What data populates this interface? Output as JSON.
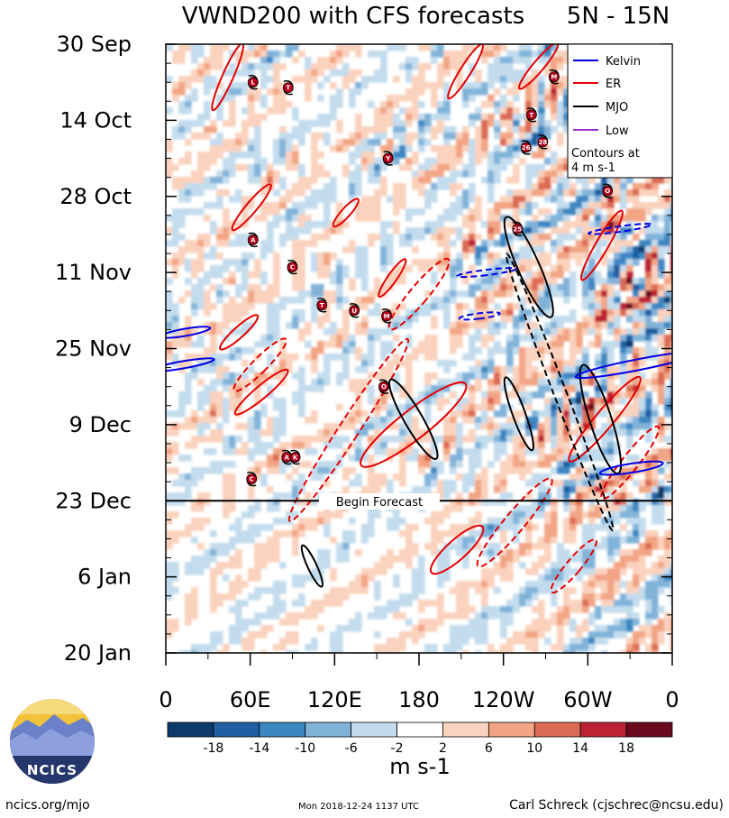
{
  "title": "VWND200 with CFS forecasts",
  "region": "5N - 15N",
  "chart_data": {
    "type": "heatmap",
    "variable": "200-hPa meridional wind anomaly, time-longitude (Hovmoller)",
    "y_axis": {
      "ticks": [
        "30 Sep",
        "14 Oct",
        "28 Oct",
        "11 Nov",
        "25 Nov",
        "9 Dec",
        "23 Dec",
        "6 Jan",
        "20 Jan"
      ],
      "range": [
        "30 Sep",
        "20 Jan"
      ],
      "day_range": [
        0,
        112
      ]
    },
    "x_axis": {
      "ticks": [
        "0",
        "60E",
        "120E",
        "180",
        "120W",
        "60W",
        "0"
      ],
      "range_deg": [
        0,
        360
      ]
    },
    "forecast_start": {
      "label": "Begin Forecast",
      "day": 84
    },
    "colorbar": {
      "ticks": [
        "-18",
        "-14",
        "-10",
        "-6",
        "-2",
        "2",
        "6",
        "10",
        "14",
        "18"
      ],
      "bins": [
        -22,
        -18,
        -14,
        -10,
        -6,
        -2,
        2,
        6,
        10,
        14,
        18,
        22
      ],
      "colors": [
        "#0c3a6b",
        "#1f5fa3",
        "#3c87c2",
        "#81b3d9",
        "#c3dced",
        "#ffffff",
        "#fad2bd",
        "#f2a584",
        "#dc6a55",
        "#bb2333",
        "#6b0a1e"
      ],
      "units": "m s-1"
    },
    "legend": {
      "items": [
        {
          "label": "Kelvin",
          "color": "#0000e6"
        },
        {
          "label": "ER",
          "color": "#e60000"
        },
        {
          "label": "MJO",
          "color": "#000000"
        },
        {
          "label": "Low",
          "color": "#9b30c8"
        }
      ],
      "note_line1": "Contours at",
      "note_line2": "4 m s-1",
      "placement": "top-right"
    },
    "storms": [
      {
        "symbol": "L",
        "lon": 62,
        "day": 7
      },
      {
        "symbol": "T",
        "lon": 87,
        "day": 8
      },
      {
        "symbol": "M",
        "lon": 276,
        "day": 6
      },
      {
        "symbol": "T",
        "lon": 260,
        "day": 13
      },
      {
        "symbol": "26",
        "lon": 256,
        "day": 19
      },
      {
        "symbol": "28",
        "lon": 268,
        "day": 18
      },
      {
        "symbol": "Y",
        "lon": 158,
        "day": 21
      },
      {
        "symbol": "O",
        "lon": 314,
        "day": 27
      },
      {
        "symbol": "25",
        "lon": 250,
        "day": 34
      },
      {
        "symbol": "A",
        "lon": 62,
        "day": 36
      },
      {
        "symbol": "C",
        "lon": 90,
        "day": 41
      },
      {
        "symbol": "T",
        "lon": 111,
        "day": 48
      },
      {
        "symbol": "U",
        "lon": 134,
        "day": 49
      },
      {
        "symbol": "M",
        "lon": 157,
        "day": 50
      },
      {
        "symbol": "O",
        "lon": 155,
        "day": 63
      },
      {
        "symbol": "A",
        "lon": 86,
        "day": 76
      },
      {
        "symbol": "K",
        "lon": 92,
        "day": 76
      },
      {
        "symbol": "C",
        "lon": 61,
        "day": 80
      }
    ],
    "contours": [
      {
        "wave": "ER",
        "style": "solid",
        "lon": 44,
        "day": 6,
        "rx": 6,
        "ry": 32,
        "rot": 24
      },
      {
        "wave": "ER",
        "style": "solid",
        "lon": 213,
        "day": 5,
        "rx": 6,
        "ry": 28,
        "rot": 32
      },
      {
        "wave": "ER",
        "style": "solid",
        "lon": 265,
        "day": 4,
        "rx": 6,
        "ry": 26,
        "rot": 40
      },
      {
        "wave": "ER",
        "style": "solid",
        "lon": 310,
        "day": 37,
        "rx": 7,
        "ry": 35,
        "rot": 30
      },
      {
        "wave": "ER",
        "style": "solid",
        "lon": 61,
        "day": 30,
        "rx": 6,
        "ry": 26,
        "rot": 40
      },
      {
        "wave": "ER",
        "style": "solid",
        "lon": 128,
        "day": 31,
        "rx": 5,
        "ry": 16,
        "rot": 42
      },
      {
        "wave": "ER",
        "style": "solid",
        "lon": 161,
        "day": 43,
        "rx": 5,
        "ry": 20,
        "rot": 35
      },
      {
        "wave": "ER",
        "style": "solid",
        "lon": 52,
        "day": 53,
        "rx": 6,
        "ry": 22,
        "rot": 48
      },
      {
        "wave": "ER",
        "style": "solid",
        "lon": 68,
        "day": 64,
        "rx": 7,
        "ry": 30,
        "rot": 50
      },
      {
        "wave": "ER",
        "style": "solid",
        "lon": 176,
        "day": 70,
        "rx": 16,
        "ry": 58,
        "rot": 52
      },
      {
        "wave": "ER",
        "style": "solid",
        "lon": 207,
        "day": 93,
        "rx": 11,
        "ry": 30,
        "rot": 48
      },
      {
        "wave": "ER",
        "style": "solid",
        "lon": 312,
        "day": 69,
        "rx": 10,
        "ry": 48,
        "rot": 40
      },
      {
        "wave": "ER",
        "style": "dashed",
        "lon": 130,
        "day": 71,
        "rx": 11,
        "ry": 95,
        "rot": 33
      },
      {
        "wave": "ER",
        "style": "dashed",
        "lon": 180,
        "day": 46,
        "rx": 10,
        "ry": 40,
        "rot": 40
      },
      {
        "wave": "ER",
        "style": "dashed",
        "lon": 67,
        "day": 59,
        "rx": 8,
        "ry": 32,
        "rot": 45
      },
      {
        "wave": "ER",
        "style": "dashed",
        "lon": 248,
        "day": 88,
        "rx": 11,
        "ry": 50,
        "rot": 40
      },
      {
        "wave": "ER",
        "style": "dashed",
        "lon": 330,
        "day": 77,
        "rx": 9,
        "ry": 40,
        "rot": 38
      },
      {
        "wave": "ER",
        "style": "dashed",
        "lon": 290,
        "day": 96,
        "rx": 8,
        "ry": 30,
        "rot": 40
      },
      {
        "wave": "MJO",
        "style": "solid",
        "lon": 176,
        "day": 69,
        "rx": 10,
        "ry": 40,
        "rot": -30
      },
      {
        "wave": "MJO",
        "style": "solid",
        "lon": 258,
        "day": 41,
        "rx": 12,
        "ry": 48,
        "rot": -24
      },
      {
        "wave": "MJO",
        "style": "solid",
        "lon": 251,
        "day": 68,
        "rx": 7,
        "ry": 34,
        "rot": -20
      },
      {
        "wave": "MJO",
        "style": "solid",
        "lon": 309,
        "day": 69,
        "rx": 12,
        "ry": 50,
        "rot": -18
      },
      {
        "wave": "MJO",
        "style": "solid",
        "lon": 104,
        "day": 96,
        "rx": 5,
        "ry": 20,
        "rot": -25
      },
      {
        "wave": "MJO",
        "style": "dashed",
        "lon": 280,
        "day": 64,
        "rx": 7,
        "ry": 130,
        "rot": -21
      },
      {
        "wave": "Kelvin",
        "style": "solid",
        "lon": 14,
        "day": 53,
        "rx": 4,
        "ry": 22,
        "rot": 80
      },
      {
        "wave": "Kelvin",
        "style": "solid",
        "lon": 12,
        "day": 59,
        "rx": 4,
        "ry": 28,
        "rot": 80
      },
      {
        "wave": "Kelvin",
        "style": "solid",
        "lon": 335,
        "day": 59,
        "rx": 6,
        "ry": 55,
        "rot": 79
      },
      {
        "wave": "Kelvin",
        "style": "solid",
        "lon": 331,
        "day": 78,
        "rx": 5,
        "ry": 28,
        "rot": 81
      },
      {
        "wave": "Kelvin",
        "style": "dashed",
        "lon": 323,
        "day": 34,
        "rx": 3,
        "ry": 28,
        "rot": 82
      },
      {
        "wave": "Kelvin",
        "style": "dashed",
        "lon": 228,
        "day": 42,
        "rx": 3,
        "ry": 26,
        "rot": 83
      },
      {
        "wave": "Kelvin",
        "style": "dashed",
        "lon": 223,
        "day": 50,
        "rx": 3,
        "ry": 18,
        "rot": 83
      }
    ]
  },
  "logo": {
    "text": "NCICS"
  },
  "footer": {
    "url": "ncics.org/mjo",
    "timestamp": "Mon 2018-12-24 1137 UTC",
    "author": "Carl Schreck (cjschrec@ncsu.edu)"
  }
}
